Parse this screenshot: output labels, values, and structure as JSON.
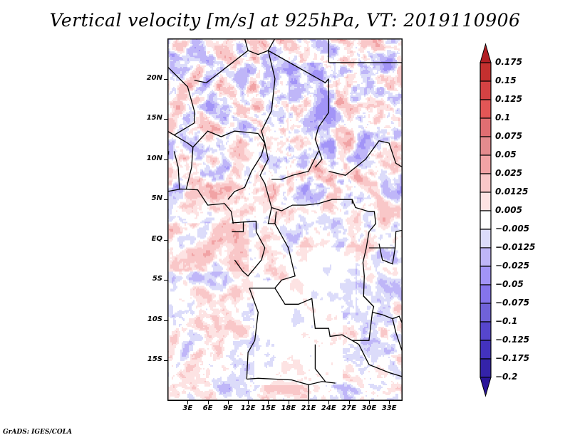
{
  "title": "Vertical velocity [m/s] at 925hPa, VT: 2019110906",
  "footer": "GrADS: IGES/COLA",
  "map": {
    "lon_range": [
      0,
      35
    ],
    "lat_range": [
      -20,
      25
    ],
    "y_axis_labels": [
      {
        "text": "20N",
        "lat": 20
      },
      {
        "text": "15N",
        "lat": 15
      },
      {
        "text": "10N",
        "lat": 10
      },
      {
        "text": "5N",
        "lat": 5
      },
      {
        "text": "EQ",
        "lat": 0
      },
      {
        "text": "5S",
        "lat": -5
      },
      {
        "text": "10S",
        "lat": -10
      },
      {
        "text": "15S",
        "lat": -15
      }
    ],
    "x_axis_labels": [
      {
        "text": "3E",
        "lon": 3
      },
      {
        "text": "6E",
        "lon": 6
      },
      {
        "text": "9E",
        "lon": 9
      },
      {
        "text": "12E",
        "lon": 12
      },
      {
        "text": "15E",
        "lon": 15
      },
      {
        "text": "18E",
        "lon": 18
      },
      {
        "text": "21E",
        "lon": 21
      },
      {
        "text": "24E",
        "lon": 24
      },
      {
        "text": "27E",
        "lon": 27
      },
      {
        "text": "30E",
        "lon": 30
      },
      {
        "text": "33E",
        "lon": 33
      }
    ]
  },
  "colorbar": {
    "labels": [
      "0.175",
      "0.15",
      "0.125",
      "0.1",
      "0.075",
      "0.05",
      "0.025",
      "0.0125",
      "0.005",
      "-0.005",
      "-0.0125",
      "-0.025",
      "-0.05",
      "-0.075",
      "-0.1",
      "-0.125",
      "-0.175",
      "-0.2"
    ],
    "colors": [
      "#b11f24",
      "#c4302f",
      "#d44243",
      "#e35656",
      "#e06e72",
      "#e48b8e",
      "#f1a3a5",
      "#f9c7c8",
      "#fde3e3",
      "#ffffff",
      "#dcdcfa",
      "#bfb6f8",
      "#a294f7",
      "#8574ec",
      "#7062d9",
      "#5646cd",
      "#4332bf",
      "#3423a9",
      "#2a1599"
    ],
    "top_arrow_color": "#b11f24",
    "bottom_arrow_color": "#2a1599"
  },
  "chart_data": {
    "type": "heatmap",
    "title": "Vertical velocity [m/s] at 925hPa, VT: 2019110906",
    "variable": "Vertical velocity",
    "units": "m/s",
    "level": "925hPa",
    "valid_time": "2019110906",
    "xlabel": "",
    "ylabel": "",
    "x_tick_labels": [
      "3E",
      "6E",
      "9E",
      "12E",
      "15E",
      "18E",
      "21E",
      "24E",
      "27E",
      "30E",
      "33E"
    ],
    "y_tick_labels": [
      "20N",
      "15N",
      "10N",
      "5N",
      "EQ",
      "5S",
      "10S",
      "15S"
    ],
    "xlim": [
      0,
      35
    ],
    "ylim": [
      -20,
      25
    ],
    "contour_levels": [
      -0.2,
      -0.175,
      -0.125,
      -0.1,
      -0.075,
      -0.05,
      -0.025,
      -0.0125,
      -0.005,
      0.005,
      0.0125,
      0.025,
      0.05,
      0.075,
      0.1,
      0.125,
      0.15,
      0.175
    ],
    "legend": "right",
    "grid": false
  }
}
